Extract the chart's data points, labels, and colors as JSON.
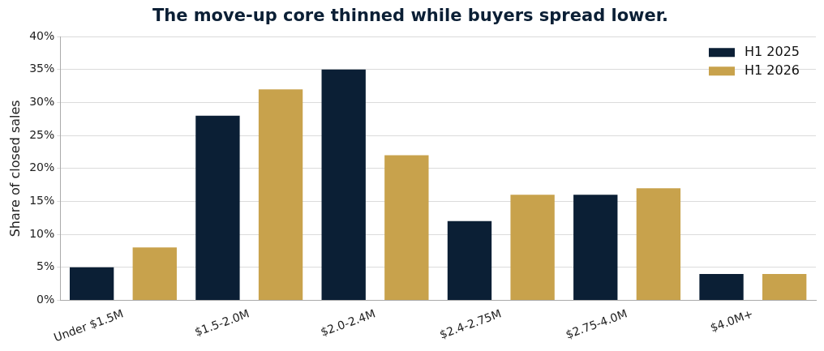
{
  "chart_data": {
    "type": "bar",
    "title": "The move-up core thinned while buyers spread lower.",
    "ylabel": "Share of closed sales",
    "categories": [
      "Under $1.5M",
      "$1.5-2.0M",
      "$2.0-2.4M",
      "$2.4-2.75M",
      "$2.75-4.0M",
      "$4.0M+"
    ],
    "series": [
      {
        "name": "H1 2025",
        "color": "#0b1f35",
        "values": [
          5,
          28,
          35,
          12,
          16,
          4
        ]
      },
      {
        "name": "H1 2026",
        "color": "#c8a24c",
        "values": [
          8,
          32,
          22,
          16,
          17,
          4
        ]
      }
    ],
    "ylim": [
      0,
      40
    ],
    "yticks": [
      {
        "value": 0,
        "label": "0%"
      },
      {
        "value": 5,
        "label": "5%"
      },
      {
        "value": 10,
        "label": "10%"
      },
      {
        "value": 15,
        "label": "15%"
      },
      {
        "value": 20,
        "label": "20%"
      },
      {
        "value": 25,
        "label": "25%"
      },
      {
        "value": 30,
        "label": "30%"
      },
      {
        "value": 35,
        "label": "35%"
      },
      {
        "value": 40,
        "label": "40%"
      }
    ],
    "grid": "y",
    "legend": "top right"
  }
}
